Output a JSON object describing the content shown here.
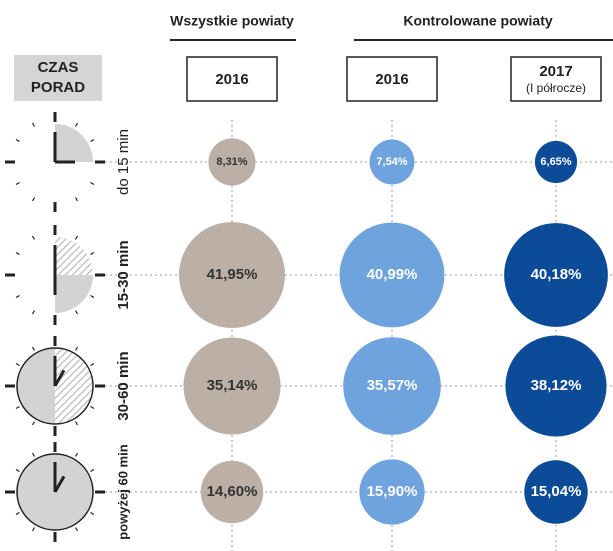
{
  "chart_data": {
    "type": "bubble-grid",
    "row_header": [
      "CZAS",
      "PORAD"
    ],
    "column_groups": [
      "Wszystkie powiaty",
      "Kontrolowane powiaty"
    ],
    "categories": [
      "do 15 min",
      "15-30 min",
      "30-60 min",
      "powyżej 60 min"
    ],
    "series": [
      {
        "name": "2016",
        "color": "#bcb0a6",
        "values": [
          8.31,
          41.95,
          35.14,
          14.6
        ],
        "value_labels": [
          "8,31%",
          "41,95%",
          "35,14%",
          "14,60%"
        ]
      },
      {
        "name": "2016",
        "color": "#6ea3dd",
        "values": [
          7.54,
          40.99,
          35.57,
          15.9
        ],
        "value_labels": [
          "7,54%",
          "40,99%",
          "35,57%",
          "15,90%"
        ]
      },
      {
        "name": "2017",
        "subname": "(I półrocze)",
        "color": "#0b4b98",
        "values": [
          6.65,
          40.18,
          38.12,
          15.04
        ],
        "value_labels": [
          "6,65%",
          "40,18%",
          "38,12%",
          "15,04%"
        ]
      }
    ]
  }
}
